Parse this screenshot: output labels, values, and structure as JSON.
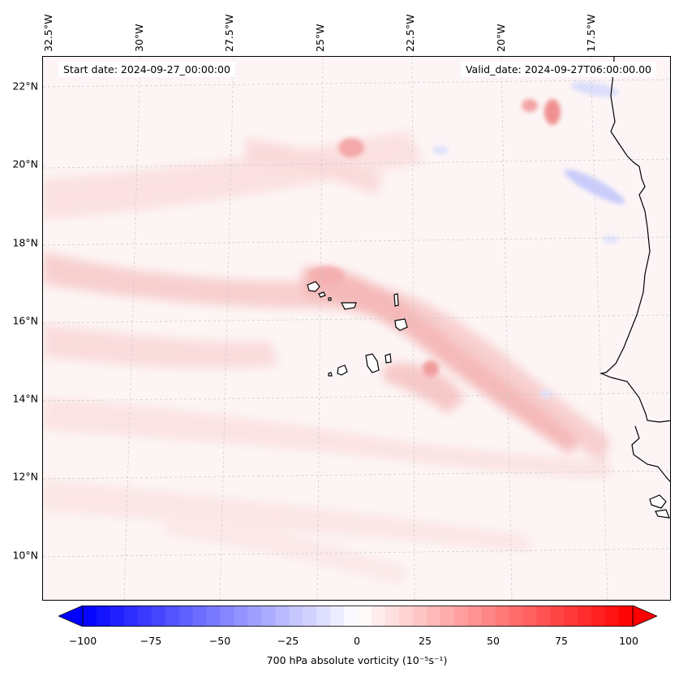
{
  "header": {
    "start_date": "Start date: 2024-09-27_00:00:00",
    "valid_date": "Valid_date: 2024-09-27T06:00:00.00"
  },
  "axes": {
    "lat_labels": [
      "22°N",
      "20°N",
      "18°N",
      "16°N",
      "14°N",
      "12°N",
      "10°N"
    ],
    "lon_labels": [
      "32.5°W",
      "30°W",
      "27.5°W",
      "25°W",
      "22.5°W",
      "20°W",
      "17.5°W"
    ]
  },
  "colorbar": {
    "ticks": [
      "−100",
      "−75",
      "−50",
      "−25",
      "0",
      "25",
      "50",
      "75",
      "100"
    ],
    "label": "700 hPa absolute vorticity (10⁻⁵s⁻¹)",
    "min": -100,
    "max": 100,
    "colors": {
      "negative": "#0000ff",
      "zero": "#ffffff",
      "positive": "#ff0000"
    }
  },
  "map": {
    "projection": "lat-lon grid with dashed gridlines",
    "coastline_color": "#000000"
  }
}
